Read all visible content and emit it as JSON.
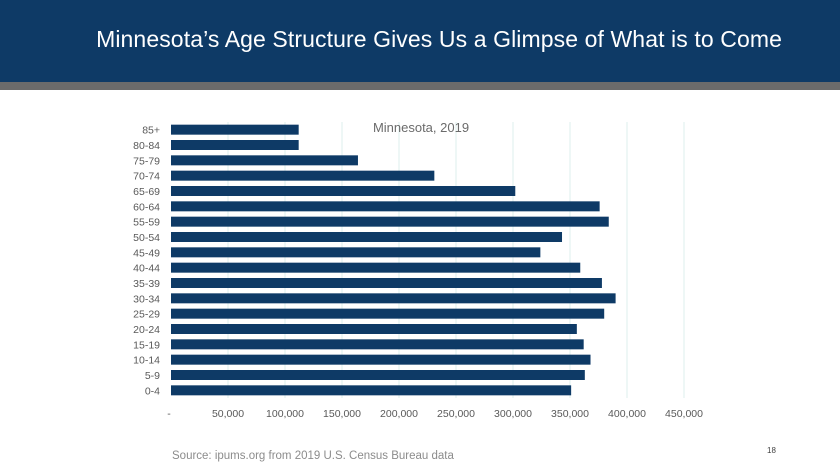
{
  "slide": {
    "title": "Minnesota’s Age Structure Gives Us a Glimpse of What is to Come",
    "source": "Source: ipums.org from 2019 U.S. Census Bureau data",
    "page_number": "18"
  },
  "colors": {
    "header": "#0e3a66",
    "header_bar": "#6b6b6b",
    "bar": "#0e3a66",
    "grid": "#dcefee"
  },
  "chart_data": {
    "type": "bar",
    "orientation": "horizontal",
    "title": "Minnesota, 2019",
    "categories": [
      "85+",
      "80-84",
      "75-79",
      "70-74",
      "65-69",
      "60-64",
      "55-59",
      "50-54",
      "45-49",
      "40-44",
      "35-39",
      "30-34",
      "25-29",
      "20-24",
      "15-19",
      "10-14",
      "5-9",
      "0-4"
    ],
    "values": [
      112000,
      112000,
      164000,
      231000,
      302000,
      376000,
      384000,
      343000,
      324000,
      359000,
      378000,
      390000,
      380000,
      356000,
      362000,
      368000,
      363000,
      351000
    ],
    "xlim": [
      0,
      450000
    ],
    "xticks": [
      0,
      50000,
      100000,
      150000,
      200000,
      250000,
      300000,
      350000,
      400000,
      450000
    ],
    "xtick_labels": [
      "-",
      "50,000",
      "100,000",
      "150,000",
      "200,000",
      "250,000",
      "300,000",
      "350,000",
      "400,000",
      "450,000"
    ],
    "grid": true,
    "legend": "none"
  }
}
